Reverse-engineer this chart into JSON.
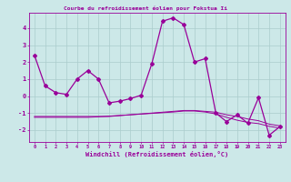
{
  "x": [
    0,
    1,
    2,
    3,
    4,
    5,
    6,
    7,
    8,
    9,
    10,
    11,
    12,
    13,
    14,
    15,
    16,
    17,
    18,
    19,
    20,
    21,
    22,
    23
  ],
  "line_main": [
    2.4,
    0.6,
    0.2,
    0.1,
    1.0,
    1.5,
    1.0,
    -0.4,
    -0.3,
    -0.15,
    0.05,
    1.9,
    4.4,
    4.6,
    4.2,
    2.0,
    2.2,
    -1.0,
    -1.5,
    -1.1,
    -1.6,
    -0.1,
    -2.3,
    -1.8
  ],
  "line_flat1": [
    -1.2,
    -1.2,
    -1.2,
    -1.2,
    -1.2,
    -1.2,
    -1.2,
    -1.2,
    -1.15,
    -1.1,
    -1.05,
    -1.0,
    -0.95,
    -0.9,
    -0.85,
    -0.85,
    -0.9,
    -0.95,
    -1.1,
    -1.2,
    -1.35,
    -1.45,
    -1.65,
    -1.75
  ],
  "line_flat2": [
    -1.25,
    -1.25,
    -1.25,
    -1.25,
    -1.25,
    -1.25,
    -1.22,
    -1.18,
    -1.14,
    -1.1,
    -1.06,
    -1.02,
    -0.98,
    -0.94,
    -0.88,
    -0.88,
    -0.94,
    -1.05,
    -1.25,
    -1.42,
    -1.55,
    -1.62,
    -1.78,
    -1.88
  ],
  "background_color": "#cce8e8",
  "grid_color": "#aacccc",
  "line_color": "#990099",
  "ylabel_vals": [
    -2,
    -1,
    0,
    1,
    2,
    3,
    4
  ],
  "xlim": [
    -0.5,
    23.5
  ],
  "ylim": [
    -2.7,
    4.9
  ],
  "xlabel": "Windchill (Refroidissement éolien,°C)",
  "title": "Courbe du refroidissement éolien pour Fokstua Ii"
}
